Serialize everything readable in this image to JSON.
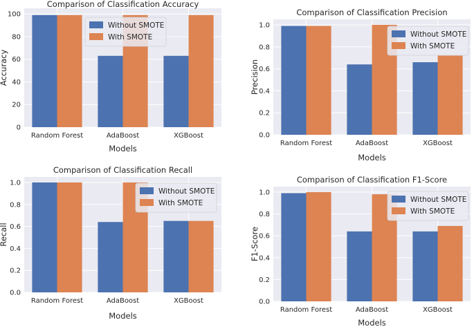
{
  "colors": {
    "without": "#4C72B0",
    "with": "#DD8452",
    "panel_bg": "#EAEAF2",
    "grid": "#FFFFFF"
  },
  "chart_data": [
    {
      "type": "bar",
      "title": "Comparison of Classification Accuracy",
      "xlabel": "Models",
      "ylabel": "Accuracy",
      "categories": [
        "Random Forest",
        "AdaBoost",
        "XGBoost"
      ],
      "ylim": [
        0,
        105
      ],
      "yticks": [
        0,
        20,
        40,
        60,
        80,
        100
      ],
      "ytick_labels": [
        "0",
        "20",
        "40",
        "60",
        "80",
        "100"
      ],
      "legend": "top-right",
      "series": [
        {
          "name": "Without SMOTE",
          "values": [
            99,
            63,
            63
          ]
        },
        {
          "name": "With SMOTE",
          "values": [
            99,
            99,
            99
          ]
        }
      ]
    },
    {
      "type": "bar",
      "title": "Comparison of Classification Precision",
      "xlabel": "Models",
      "ylabel": "Precision",
      "categories": [
        "Random Forest",
        "AdaBoost",
        "XGBoost"
      ],
      "ylim": [
        0,
        1.05
      ],
      "yticks": [
        0,
        0.2,
        0.4,
        0.6,
        0.8,
        1.0
      ],
      "ytick_labels": [
        "0.0",
        "0.2",
        "0.4",
        "0.6",
        "0.8",
        "1.0"
      ],
      "legend": "top-right",
      "series": [
        {
          "name": "Without SMOTE",
          "values": [
            0.99,
            0.64,
            0.66
          ]
        },
        {
          "name": "With SMOTE",
          "values": [
            0.99,
            1.0,
            0.72
          ]
        }
      ]
    },
    {
      "type": "bar",
      "title": "Comparison of Classification Recall",
      "xlabel": "Models",
      "ylabel": "Recall",
      "categories": [
        "Random Forest",
        "AdaBoost",
        "XGBoost"
      ],
      "ylim": [
        0,
        1.05
      ],
      "yticks": [
        0,
        0.2,
        0.4,
        0.6,
        0.8,
        1.0
      ],
      "ytick_labels": [
        "0.0",
        "0.2",
        "0.4",
        "0.6",
        "0.8",
        "1.0"
      ],
      "legend": "top-right",
      "series": [
        {
          "name": "Without SMOTE",
          "values": [
            1.0,
            0.64,
            0.65
          ]
        },
        {
          "name": "With SMOTE",
          "values": [
            1.0,
            1.0,
            0.65
          ]
        }
      ]
    },
    {
      "type": "bar",
      "title": "Comparison of Classification F1-Score",
      "xlabel": "Models",
      "ylabel": "F1-Score",
      "categories": [
        "Random Forest",
        "AdaBoost",
        "XGBoost"
      ],
      "ylim": [
        0,
        1.05
      ],
      "yticks": [
        0,
        0.2,
        0.4,
        0.6,
        0.8,
        1.0
      ],
      "ytick_labels": [
        "0.0",
        "0.2",
        "0.4",
        "0.6",
        "0.8",
        "1.0"
      ],
      "legend": "top-right",
      "series": [
        {
          "name": "Without SMOTE",
          "values": [
            0.99,
            0.64,
            0.64
          ]
        },
        {
          "name": "With SMOTE",
          "values": [
            1.0,
            0.98,
            0.69
          ]
        }
      ]
    }
  ]
}
